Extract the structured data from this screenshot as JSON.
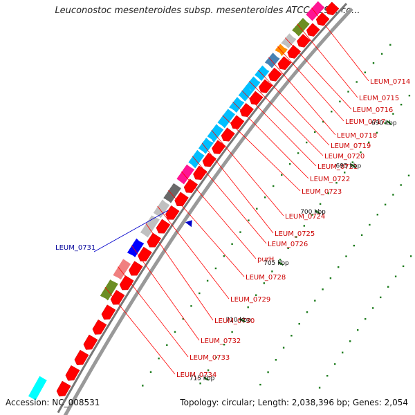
{
  "title": "Leuconostoc mesenteroides subsp. mesenteroides ATCC 8293, co...",
  "footer": {
    "accession": "Accession: NC_008531",
    "topology": "Topology: circular; Length: 2,038,396 bp; Genes: 2,054"
  },
  "colors": {
    "outer_band": "#999999",
    "forward_cds": "#ff0000",
    "label_line": "#ff0000",
    "label_text": "#cc0000",
    "highlight_label": "#000099",
    "dots": "#1a7a1a",
    "highlight_marker": "#0000cc"
  },
  "ticks": [
    {
      "label": "690 kbp"
    },
    {
      "label": "695 kbp"
    },
    {
      "label": "700 kbp"
    },
    {
      "label": "705 kbp"
    },
    {
      "label": "710 kbp"
    },
    {
      "label": "715 kbp"
    }
  ],
  "genes": [
    {
      "label": "LEUM_0714",
      "color": "#ff1493"
    },
    {
      "label": "LEUM_0715",
      "color": "#6b8e23"
    },
    {
      "label": "LEUM_0716",
      "color": "#c0c0c0"
    },
    {
      "label": "LEUM_0717",
      "color": "#ff8c00"
    },
    {
      "label": "LEUM_0718",
      "color": "#4682b4"
    },
    {
      "label": "LEUM_0719",
      "color": "#00bfff"
    },
    {
      "label": "LEUM_0720",
      "color": "#00bfff"
    },
    {
      "label": "LEUM_0721",
      "color": "#00bfff"
    },
    {
      "label": "LEUM_0722",
      "color": "#00bfff"
    },
    {
      "label": "LEUM_0723",
      "color": "#00bfff"
    },
    {
      "label": "LEUM_0724",
      "color": "#00bfff"
    },
    {
      "label": "LEUM_0725",
      "color": "#00bfff"
    },
    {
      "label": "LEUM_0726",
      "color": "#00bfff"
    },
    {
      "label": "purH",
      "color": "#ff1493"
    },
    {
      "label": "LEUM_0728",
      "color": "#696969"
    },
    {
      "label": "LEUM_0729",
      "color": "#c0c0c0"
    },
    {
      "label": "LEUM_0730",
      "color": "#c0c0c0"
    },
    {
      "label": "LEUM_0732",
      "color": "#0000ff"
    },
    {
      "label": "LEUM_0733",
      "color": "#f08080"
    },
    {
      "label": "LEUM_0734",
      "color": "#6b8e23"
    }
  ],
  "highlighted_gene": {
    "label": "LEUM_0731"
  }
}
